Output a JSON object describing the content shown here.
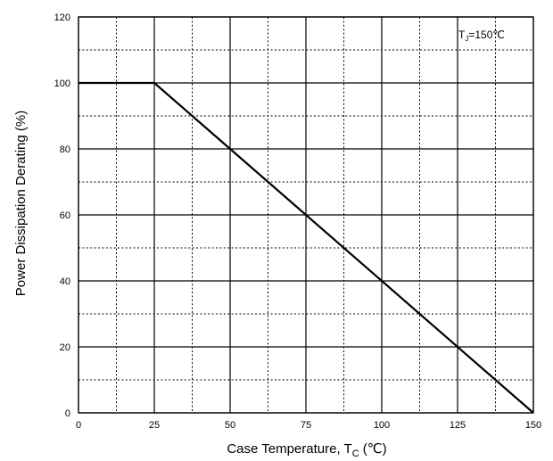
{
  "chart_data": {
    "type": "line",
    "xlabel": "Case Temperature, T",
    "xlabel_subscript": "C",
    "xlabel_unit": " (℃)",
    "ylabel": "Power Dissipation Derating (%)",
    "xlim": [
      0,
      150
    ],
    "ylim": [
      0,
      120
    ],
    "x_ticks": [
      0,
      25,
      50,
      75,
      100,
      125,
      150
    ],
    "y_ticks": [
      0,
      20,
      40,
      60,
      80,
      100,
      120
    ],
    "x_minor": [
      12.5,
      37.5,
      62.5,
      87.5,
      112.5,
      137.5
    ],
    "y_minor": [
      10,
      30,
      50,
      70,
      90,
      110
    ],
    "grid": true,
    "series": [
      {
        "x": [
          0,
          25,
          150
        ],
        "y": [
          100,
          100,
          0
        ]
      }
    ],
    "annotation": {
      "prefix": "T",
      "subscript": "J",
      "text": "=150℃"
    }
  }
}
